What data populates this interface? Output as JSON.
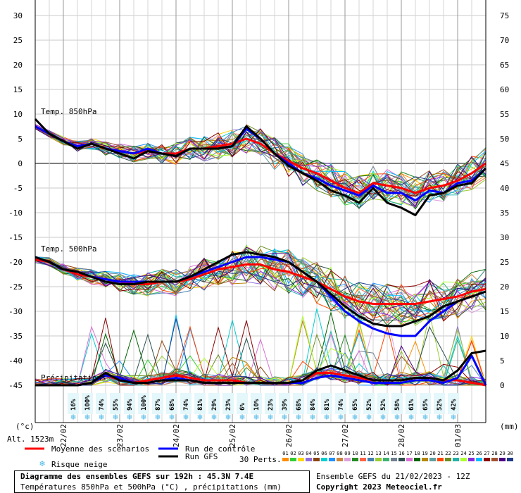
{
  "chart_data": {
    "type": "line",
    "left_axis": {
      "unit_label": "(°c)",
      "ticks": [
        30,
        25,
        20,
        15,
        10,
        5,
        0,
        -5,
        -10,
        -15,
        -20,
        -25,
        -30,
        -35,
        -40,
        -45
      ],
      "ylim": [
        -45,
        30
      ]
    },
    "right_axis": {
      "unit_label": "(mm)",
      "ticks": [
        75,
        70,
        65,
        60,
        55,
        50,
        45,
        40,
        35,
        30,
        25,
        20,
        15,
        10,
        5,
        0
      ],
      "ylim": [
        0,
        75
      ]
    },
    "x_dates": [
      "22/02",
      "23/02",
      "24/02",
      "25/02",
      "26/02",
      "27/02",
      "28/02",
      "01/03"
    ],
    "x_range_hours": [
      0,
      192
    ],
    "annotations": {
      "temp850": "Temp. 850hPa",
      "temp500": "Temp. 500hPa",
      "precip": "Précipitations",
      "altitude": "Alt. 1523m"
    },
    "snow_risk_percent": [
      "16%",
      "100%",
      "74%",
      "55%",
      "94%",
      "100%",
      "87%",
      "68%",
      "74%",
      "81%",
      "29%",
      "23%",
      "6%",
      "10%",
      "23%",
      "39%",
      "68%",
      "84%",
      "81%",
      "74%",
      "65%",
      "52%",
      "52%",
      "58%",
      "61%",
      "65%",
      "52%",
      "42%"
    ],
    "series": [
      {
        "name": "Moyenne des scénarios",
        "group": "t850",
        "color": "#ff0000",
        "x": [
          0,
          6,
          12,
          18,
          24,
          30,
          36,
          42,
          48,
          54,
          60,
          66,
          72,
          78,
          84,
          90,
          96,
          102,
          108,
          114,
          120,
          126,
          132,
          138,
          144,
          150,
          156,
          162,
          168,
          174,
          180,
          186,
          192
        ],
        "y": [
          7.5,
          6,
          4.5,
          3.5,
          4,
          3,
          2.5,
          2,
          2.5,
          2,
          2,
          3,
          3,
          3.5,
          4,
          5,
          4,
          2,
          0.5,
          -1,
          -2,
          -3.5,
          -5,
          -6,
          -4,
          -4.5,
          -5,
          -6,
          -5,
          -4.5,
          -3.5,
          -2,
          0
        ]
      },
      {
        "name": "Run de contrôle",
        "group": "t850",
        "color": "#0000ff",
        "x": [
          0,
          6,
          12,
          18,
          24,
          30,
          36,
          42,
          48,
          54,
          60,
          66,
          72,
          78,
          84,
          90,
          96,
          102,
          108,
          114,
          120,
          126,
          132,
          138,
          144,
          150,
          156,
          162,
          168,
          174,
          180,
          186,
          192
        ],
        "y": [
          7.5,
          6,
          4.5,
          3.5,
          4,
          3,
          2.5,
          2,
          3,
          2,
          1.5,
          3,
          3,
          3,
          3.5,
          7,
          5,
          2,
          0,
          -2,
          -3,
          -4.5,
          -5.5,
          -6.5,
          -4.5,
          -6,
          -6,
          -7.5,
          -5.5,
          -6,
          -4,
          -3.5,
          -1
        ]
      },
      {
        "name": "Run GFS",
        "group": "t850",
        "color": "#000000",
        "x": [
          0,
          6,
          12,
          18,
          24,
          30,
          36,
          42,
          48,
          54,
          60,
          66,
          72,
          78,
          84,
          90,
          96,
          102,
          108,
          114,
          120,
          126,
          132,
          138,
          144,
          150,
          156,
          162,
          168,
          174,
          180,
          186,
          192
        ],
        "y": [
          9,
          6,
          4.5,
          3,
          4,
          3,
          2,
          1,
          2.5,
          2,
          1.5,
          3,
          3,
          3,
          3.5,
          7.5,
          5,
          2,
          -0.5,
          -2,
          -3.5,
          -5.5,
          -6.5,
          -8,
          -5,
          -8,
          -9,
          -10.5,
          -6.5,
          -6,
          -4.5,
          -4,
          -1
        ]
      },
      {
        "name": "Moyenne des scénarios",
        "group": "t500",
        "color": "#ff0000",
        "x": [
          0,
          6,
          12,
          18,
          24,
          30,
          36,
          42,
          48,
          54,
          60,
          66,
          72,
          78,
          84,
          90,
          96,
          102,
          108,
          114,
          120,
          126,
          132,
          138,
          144,
          150,
          156,
          162,
          168,
          174,
          180,
          186,
          192
        ],
        "y": [
          -19.5,
          -20,
          -21.5,
          -22.5,
          -23,
          -23.5,
          -24,
          -24.5,
          -24.5,
          -24,
          -24,
          -23.5,
          -22.5,
          -21.5,
          -21,
          -20.5,
          -20.5,
          -21.5,
          -22,
          -23,
          -24,
          -25.5,
          -27,
          -28,
          -28.5,
          -28.5,
          -28.5,
          -28.5,
          -28,
          -27.5,
          -27,
          -26,
          -25.5
        ]
      },
      {
        "name": "Run de contrôle",
        "group": "t500",
        "color": "#0000ff",
        "x": [
          0,
          6,
          12,
          18,
          24,
          30,
          36,
          42,
          48,
          54,
          60,
          66,
          72,
          78,
          84,
          90,
          96,
          102,
          108,
          114,
          120,
          126,
          132,
          138,
          144,
          150,
          156,
          162,
          168,
          174,
          180,
          186,
          192
        ],
        "y": [
          -19,
          -20,
          -21.5,
          -22,
          -23,
          -23.5,
          -24,
          -24,
          -24,
          -24,
          -24,
          -23,
          -22,
          -21,
          -20,
          -19,
          -19,
          -19.5,
          -20,
          -22,
          -24,
          -27,
          -30,
          -32,
          -33.5,
          -34.5,
          -35,
          -35,
          -32,
          -30,
          -28,
          -27,
          -26
        ]
      },
      {
        "name": "Run GFS",
        "group": "t500",
        "color": "#000000",
        "x": [
          0,
          6,
          12,
          18,
          24,
          30,
          36,
          42,
          48,
          54,
          60,
          66,
          72,
          78,
          84,
          90,
          96,
          102,
          108,
          114,
          120,
          126,
          132,
          138,
          144,
          150,
          156,
          162,
          168,
          174,
          180,
          186,
          192
        ],
        "y": [
          -19,
          -20,
          -21.5,
          -22,
          -23,
          -24,
          -24.5,
          -24.5,
          -24,
          -24,
          -24,
          -23,
          -21.5,
          -20,
          -18.5,
          -18,
          -18.5,
          -19,
          -20,
          -22,
          -24,
          -26.5,
          -29,
          -31,
          -32.5,
          -33,
          -33,
          -32,
          -31,
          -29,
          -28,
          -27,
          -26
        ]
      },
      {
        "name": "Moyenne des scénarios",
        "group": "precip",
        "color": "#ff0000",
        "x": [
          0,
          6,
          12,
          18,
          24,
          30,
          36,
          42,
          48,
          54,
          60,
          66,
          72,
          78,
          84,
          90,
          96,
          102,
          108,
          114,
          120,
          126,
          132,
          138,
          144,
          150,
          156,
          162,
          168,
          174,
          180,
          186,
          192
        ],
        "y": [
          0,
          0,
          0,
          0,
          0.5,
          2,
          1,
          0.5,
          1,
          1.5,
          2,
          1.5,
          1,
          1,
          1,
          0.5,
          0.5,
          0.5,
          0.5,
          1,
          2.5,
          2.5,
          2,
          1.5,
          1,
          1,
          1,
          1.5,
          1.5,
          1,
          1,
          0.5,
          0
        ]
      },
      {
        "name": "Run de contrôle",
        "group": "precip",
        "color": "#0000ff",
        "x": [
          0,
          6,
          12,
          18,
          24,
          30,
          36,
          42,
          48,
          54,
          60,
          66,
          72,
          78,
          84,
          90,
          96,
          102,
          108,
          114,
          120,
          126,
          132,
          138,
          144,
          150,
          156,
          162,
          168,
          174,
          180,
          186,
          192
        ],
        "y": [
          0,
          0,
          0,
          0,
          0.5,
          2,
          1.5,
          0.5,
          0.5,
          1,
          1.5,
          1,
          0.5,
          0.5,
          0.5,
          0.5,
          0.5,
          0.5,
          0.5,
          0.5,
          1.5,
          2,
          1.5,
          1,
          0.5,
          0.5,
          0.5,
          1,
          1,
          0.5,
          1.5,
          6,
          0
        ]
      },
      {
        "name": "Run GFS",
        "group": "precip",
        "color": "#000000",
        "x": [
          0,
          6,
          12,
          18,
          24,
          30,
          36,
          42,
          48,
          54,
          60,
          66,
          72,
          78,
          84,
          90,
          96,
          102,
          108,
          114,
          120,
          126,
          132,
          138,
          144,
          150,
          156,
          162,
          168,
          174,
          180,
          186,
          192
        ],
        "y": [
          0,
          0,
          0,
          0,
          0.5,
          2.5,
          1,
          0.5,
          0.5,
          1,
          1,
          1,
          0.5,
          0.5,
          0.5,
          0.5,
          0.5,
          0.5,
          0.5,
          1,
          3,
          4,
          3,
          2,
          1,
          1,
          1,
          1.5,
          1.5,
          1,
          3,
          6.5,
          7
        ]
      }
    ],
    "perturbations_label": "30 Perts.",
    "perturbation_ids": [
      "01",
      "02",
      "03",
      "04",
      "05",
      "06",
      "07",
      "08",
      "09",
      "10",
      "11",
      "12",
      "13",
      "14",
      "15",
      "16",
      "17",
      "18",
      "19",
      "20",
      "21",
      "22",
      "23",
      "24",
      "25",
      "26",
      "27",
      "28",
      "29",
      "30"
    ],
    "perturbation_colors": [
      "#ff8c00",
      "#32cd32",
      "#ffd700",
      "#9370db",
      "#8b4513",
      "#00ced1",
      "#1e90ff",
      "#cd853f",
      "#dda0dd",
      "#228b22",
      "#ff6347",
      "#4682b4",
      "#9acd32",
      "#3cb371",
      "#708090",
      "#2f4f4f",
      "#da70d6",
      "#006400",
      "#b8860b",
      "#5f9ea0",
      "#ff4500",
      "#6b8e23",
      "#20b2aa",
      "#adff2f",
      "#8a2be2",
      "#00bfff",
      "#8b0000",
      "#a0522d",
      "#4b0082",
      "#1e3a8a"
    ],
    "legend_placement": "bottom",
    "grid": true
  },
  "legend": {
    "mean": "Moyenne des scénarios",
    "control": "Run de contrôle",
    "gfs": "Run GFS",
    "snow": "Risque neige"
  },
  "footer": {
    "title": "Diagramme des ensembles GEFS sur 192h : 45.3N 7.4E",
    "subtitle": "Températures 850hPa et 500hPa (°C) , précipitations (mm)",
    "run_info": "Ensemble GEFS du 21/02/2023 - 12Z",
    "copyright": "Copyright 2023 Meteociel.fr"
  }
}
